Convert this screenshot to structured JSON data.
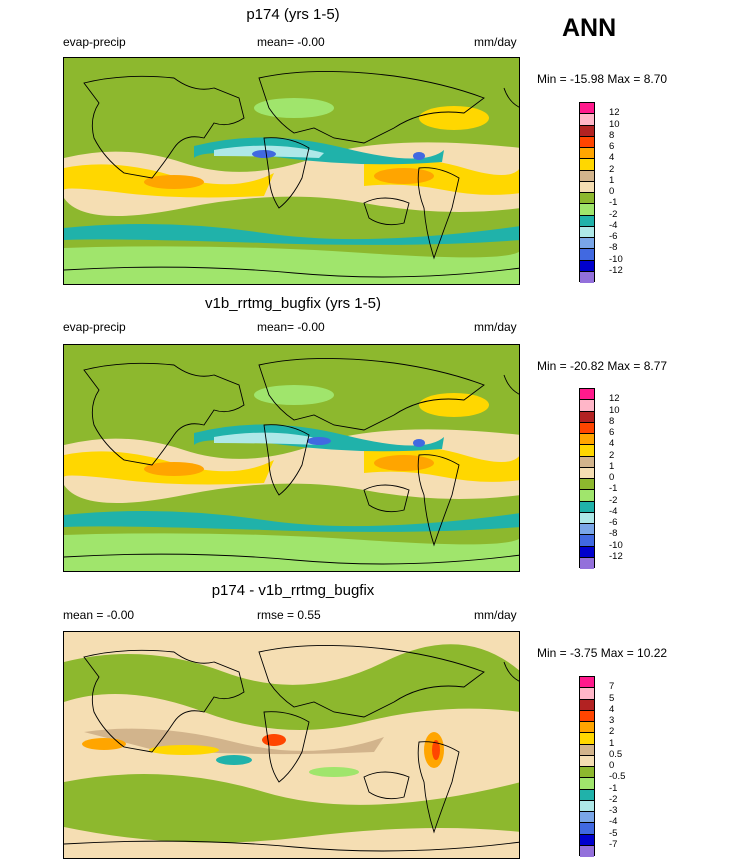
{
  "season": "ANN",
  "panels": [
    {
      "title": "p174 (yrs 1-5)",
      "left_label": "evap-precip",
      "center_label": "mean=  -0.00",
      "units": "mm/day",
      "minmax": "Min = -15.98 Max =   8.70",
      "colorbar": {
        "ticks": [
          "12",
          "10",
          "8",
          "6",
          "4",
          "2",
          "1",
          "0",
          "-1",
          "-2",
          "-4",
          "-6",
          "-8",
          "-10",
          "-12"
        ],
        "colors": [
          "#ff1a8c",
          "#ffb6c8",
          "#b22222",
          "#ff4500",
          "#ffa500",
          "#ffd700",
          "#d2b48c",
          "#f5deb3",
          "#8db82e",
          "#a0e56c",
          "#20b2aa",
          "#aee8e8",
          "#7aa6e8",
          "#4169e1",
          "#0000cd",
          "#9370db"
        ]
      }
    },
    {
      "title": "v1b_rrtmg_bugfix (yrs 1-5)",
      "left_label": "evap-precip",
      "center_label": "mean=  -0.00",
      "units": "mm/day",
      "minmax": "Min = -20.82 Max =   8.77",
      "colorbar": {
        "ticks": [
          "12",
          "10",
          "8",
          "6",
          "4",
          "2",
          "1",
          "0",
          "-1",
          "-2",
          "-4",
          "-6",
          "-8",
          "-10",
          "-12"
        ],
        "colors": [
          "#ff1a8c",
          "#ffb6c8",
          "#b22222",
          "#ff4500",
          "#ffa500",
          "#ffd700",
          "#d2b48c",
          "#f5deb3",
          "#8db82e",
          "#a0e56c",
          "#20b2aa",
          "#aee8e8",
          "#7aa6e8",
          "#4169e1",
          "#0000cd",
          "#9370db"
        ]
      }
    },
    {
      "title": "p174 - v1b_rrtmg_bugfix",
      "left_label": "mean =  -0.00",
      "center_label": "rmse =   0.55",
      "units": "mm/day",
      "minmax": "Min =  -3.75 Max =  10.22",
      "colorbar": {
        "ticks": [
          "7",
          "5",
          "4",
          "3",
          "2",
          "1",
          "0.5",
          "0",
          "-0.5",
          "-1",
          "-2",
          "-3",
          "-4",
          "-5",
          "-7"
        ],
        "colors": [
          "#ff1a8c",
          "#ffb6c8",
          "#b22222",
          "#ff4500",
          "#ffa500",
          "#ffd700",
          "#d2b48c",
          "#f5deb3",
          "#8db82e",
          "#a0e56c",
          "#20b2aa",
          "#aee8e8",
          "#7aa6e8",
          "#4169e1",
          "#0000cd",
          "#9370db"
        ]
      }
    }
  ]
}
